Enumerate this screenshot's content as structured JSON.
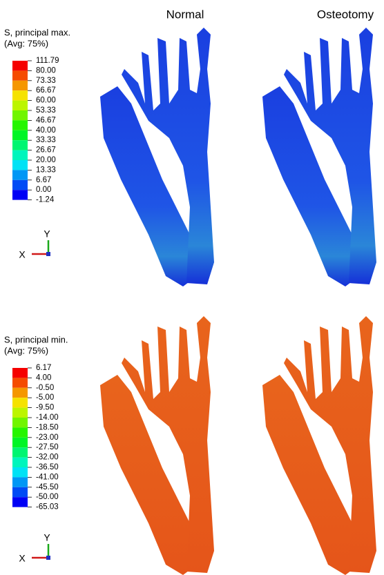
{
  "columns": [
    "Normal",
    "Osteotomy"
  ],
  "legends": [
    {
      "title": "S, principal max.",
      "subtitle": "(Avg: 75%)",
      "labels": [
        "111.79",
        "80.00",
        "73.33",
        "66.67",
        "60.00",
        "53.33",
        "46.67",
        "40.00",
        "33.33",
        "26.67",
        "20.00",
        "13.33",
        "6.67",
        "0.00",
        "-1.24"
      ]
    },
    {
      "title": "S, principal min.",
      "subtitle": "(Avg: 75%)",
      "labels": [
        "6.17",
        "4.00",
        "-0.50",
        "-5.00",
        "-9.50",
        "-14.00",
        "-18.50",
        "-23.00",
        "-27.50",
        "-32.00",
        "-36.50",
        "-41.00",
        "-45.50",
        "-50.00",
        "-65.03"
      ]
    }
  ],
  "triads": [
    {
      "y": "Y",
      "x": "X"
    },
    {
      "y": "Y",
      "x": "X"
    }
  ]
}
